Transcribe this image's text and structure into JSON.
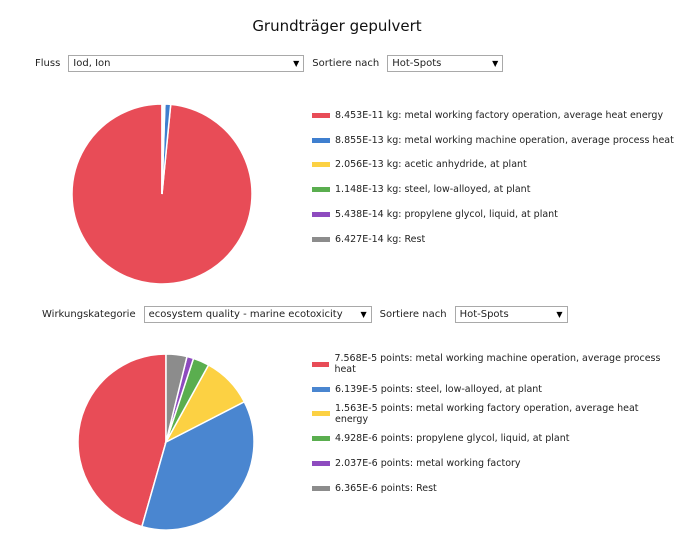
{
  "title": "Grundträger gepulvert",
  "flow_row": {
    "label": "Fluss",
    "value": "Iod, Ion",
    "sort_label": "Sortiere nach",
    "sort_value": "Hot-Spots"
  },
  "impact_row": {
    "label": "Wirkungskategorie",
    "value": "ecosystem quality - marine ecotoxicity",
    "sort_label": "Sortiere nach",
    "sort_value": "Hot-Spots"
  },
  "chart_data": [
    {
      "type": "pie",
      "unit": "kg",
      "labels": [
        "metal working factory operation, average heat energy",
        "metal working machine operation, average process heat",
        "acetic anhydride, at plant",
        "steel, low-alloyed, at plant",
        "propylene glycol, liquid, at plant",
        "Rest"
      ],
      "values": [
        8.453e-11,
        8.855e-13,
        2.056e-13,
        1.148e-13,
        5.438e-14,
        6.427e-14
      ],
      "legend": [
        "8.453E-11 kg: metal working factory operation, average heat energy",
        "8.855E-13 kg: metal working machine operation, average process heat",
        "2.056E-13 kg: acetic anhydride, at plant",
        "1.148E-13 kg: steel, low-alloyed, at plant",
        "5.438E-14 kg: propylene glycol, liquid, at plant",
        "6.427E-14 kg: Rest"
      ],
      "colors": [
        "#e84c57",
        "#3f7fcf",
        "#fcd143",
        "#5aae4f",
        "#8e4bbf",
        "#8c8c8c"
      ],
      "legend_position": "right"
    },
    {
      "type": "pie",
      "unit": "points",
      "labels": [
        "metal working machine operation, average process heat",
        "steel, low-alloyed, at plant",
        "metal working factory operation, average heat energy",
        "propylene glycol, liquid, at plant",
        "metal working factory",
        "Rest"
      ],
      "values": [
        7.568e-05,
        6.139e-05,
        1.563e-05,
        4.928e-06,
        2.037e-06,
        6.365e-06
      ],
      "legend": [
        "7.568E-5 points: metal working machine operation, average process heat",
        "6.139E-5 points: steel, low-alloyed, at plant",
        "1.563E-5 points: metal working factory operation, average heat energy",
        "4.928E-6 points: propylene glycol, liquid, at plant",
        "2.037E-6 points: metal working factory",
        "6.365E-6 points: Rest"
      ],
      "colors": [
        "#e84c57",
        "#4a86d0",
        "#fcd143",
        "#5aae4f",
        "#8e4bbf",
        "#8c8c8c"
      ],
      "legend_position": "right"
    }
  ]
}
